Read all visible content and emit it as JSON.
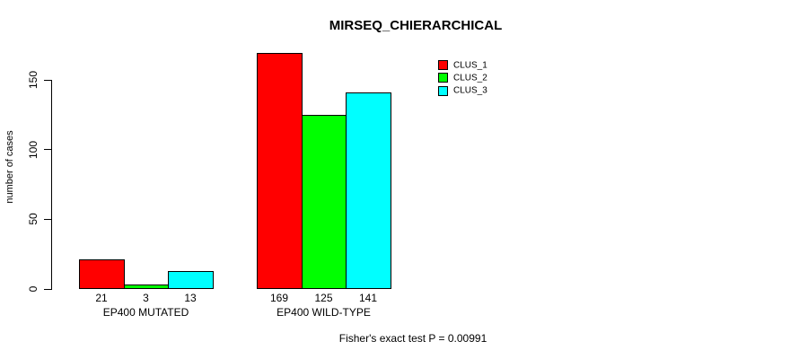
{
  "chart_data": {
    "type": "bar",
    "title": "MIRSEQ_CHIERARCHICAL",
    "categories": [
      "EP400 MUTATED",
      "EP400 WILD-TYPE"
    ],
    "series": [
      {
        "name": "CLUS_1",
        "color": "#ff0000",
        "values": [
          21,
          169
        ]
      },
      {
        "name": "CLUS_2",
        "color": "#00ff00",
        "values": [
          3,
          125
        ]
      },
      {
        "name": "CLUS_3",
        "color": "#00ffff",
        "values": [
          13,
          141
        ]
      }
    ],
    "xlabel": "",
    "ylabel": "number of cases",
    "yticks": [
      0,
      50,
      100,
      150
    ],
    "ylim": [
      0,
      170
    ],
    "grid": false,
    "bar_borders_color": "#000000",
    "legend_position": "top-right-inside",
    "annotation": "Fisher's exact test P = 0.00991"
  }
}
